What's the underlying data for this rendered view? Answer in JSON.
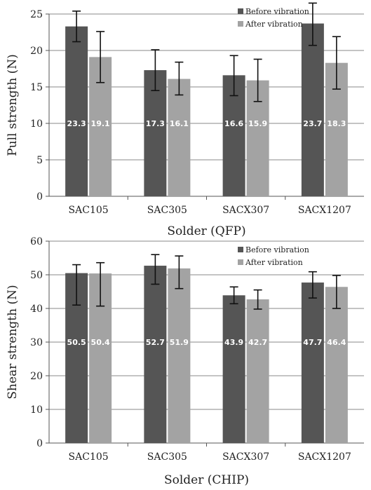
{
  "chart_data": [
    {
      "type": "bar",
      "categories": [
        "SAC105",
        "SAC305",
        "SACX307",
        "SACX1207"
      ],
      "series": [
        {
          "name": "Before vibration",
          "values": [
            23.3,
            17.3,
            16.6,
            23.7
          ],
          "err_low": [
            21.2,
            14.5,
            13.8,
            20.7
          ],
          "err_high": [
            25.4,
            20.1,
            19.3,
            26.5
          ],
          "color": "#555555"
        },
        {
          "name": "After vibration",
          "values": [
            19.1,
            16.1,
            15.9,
            18.3
          ],
          "err_low": [
            15.6,
            13.9,
            13.0,
            14.7
          ],
          "err_high": [
            22.6,
            18.4,
            18.8,
            21.9
          ],
          "color": "#a3a3a3"
        }
      ],
      "data_labels": [
        [
          "23.3",
          "17.3",
          "16.6",
          "23.7"
        ],
        [
          "19.1",
          "16.1",
          "15.9",
          "18.3"
        ]
      ],
      "xlabel": "Solder (QFP)",
      "ylabel": "Pull strength (N)",
      "ylim": [
        0,
        25
      ],
      "yticks": [
        0,
        5,
        10,
        15,
        20,
        25
      ],
      "grid": true,
      "legend": "top-right"
    },
    {
      "type": "bar",
      "categories": [
        "SAC105",
        "SAC305",
        "SACX307",
        "SACX1207"
      ],
      "series": [
        {
          "name": "Before vibration",
          "values": [
            50.5,
            52.7,
            43.9,
            47.7
          ],
          "err_low": [
            41.0,
            47.2,
            41.4,
            43.1
          ],
          "err_high": [
            53.0,
            56.0,
            46.4,
            50.9
          ],
          "color": "#555555"
        },
        {
          "name": "After vibration",
          "values": [
            50.4,
            51.9,
            42.7,
            46.4
          ],
          "err_low": [
            40.7,
            45.9,
            39.8,
            40.0
          ],
          "err_high": [
            53.6,
            55.6,
            45.5,
            49.8
          ],
          "color": "#a3a3a3"
        }
      ],
      "data_labels": [
        [
          "50.5",
          "52.7",
          "43.9",
          "47.7"
        ],
        [
          "50.4",
          "51.9",
          "42.7",
          "46.4"
        ]
      ],
      "xlabel": "Solder (CHIP)",
      "ylabel": "Shear strength (N)",
      "ylim": [
        0,
        60
      ],
      "yticks": [
        0,
        10,
        20,
        30,
        40,
        50,
        60
      ],
      "grid": true,
      "legend": "top-right"
    }
  ]
}
